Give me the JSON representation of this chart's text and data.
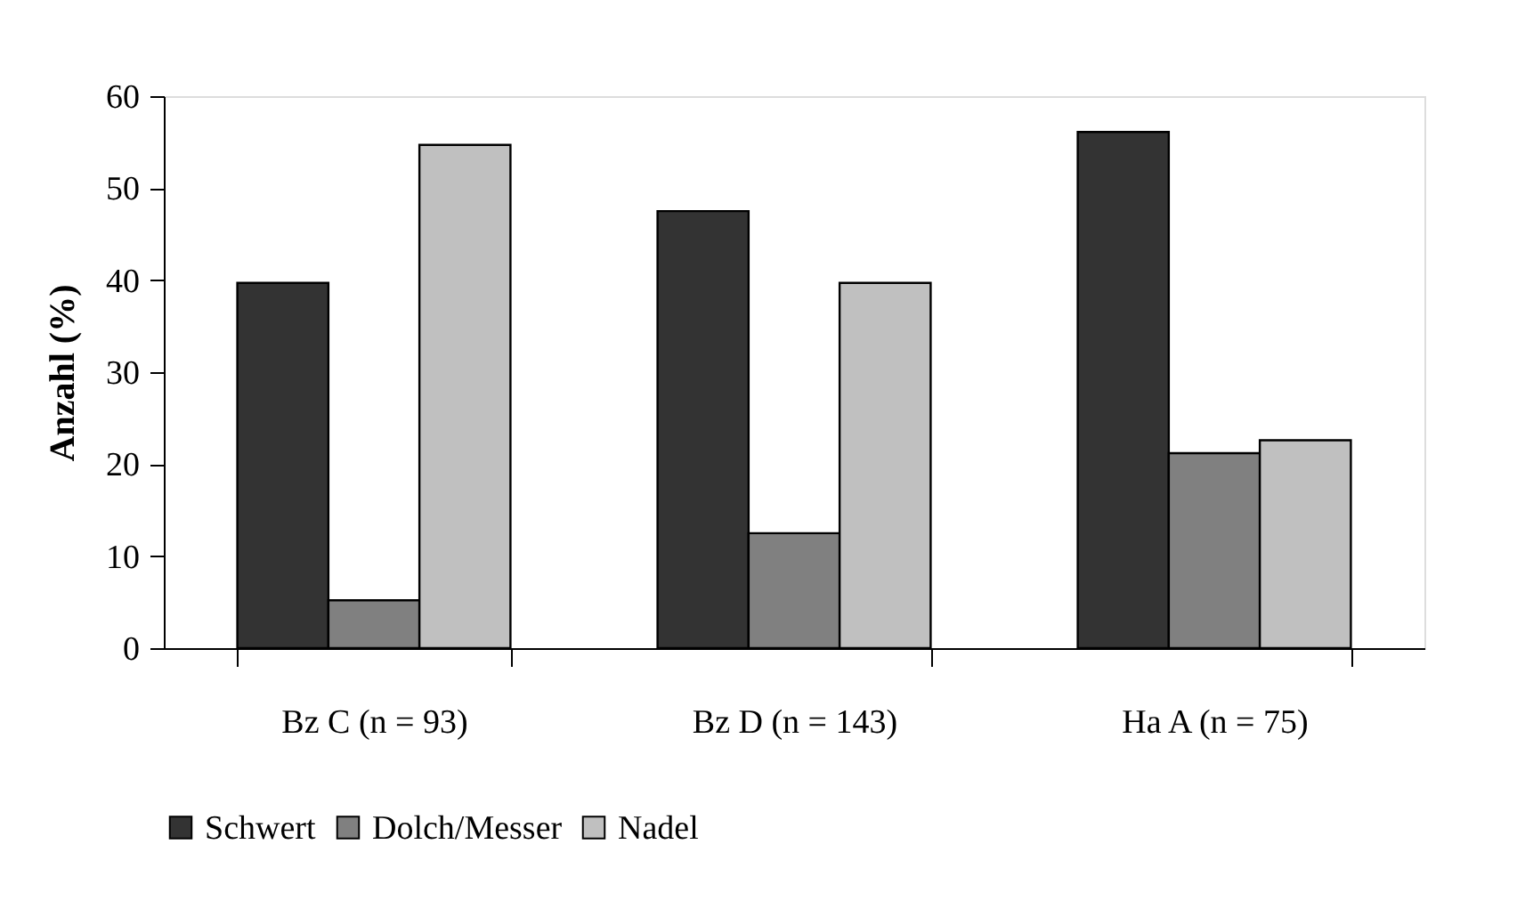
{
  "chart_data": {
    "type": "bar",
    "ylabel": "Anzahl (%)",
    "categories": [
      "Bz C (n = 93)",
      "Bz D (n = 143)",
      "Ha A (n = 75)"
    ],
    "series": [
      {
        "name": "Schwert",
        "color": "#333333",
        "values": [
          39.7,
          47.5,
          56.1
        ]
      },
      {
        "name": "Dolch/Messer",
        "color": "#808080",
        "values": [
          5.2,
          12.5,
          21.2
        ]
      },
      {
        "name": "Nadel",
        "color": "#c0c0c0",
        "values": [
          54.7,
          39.7,
          22.6
        ]
      }
    ],
    "ylim": [
      0,
      60
    ],
    "yticks": [
      0,
      10,
      20,
      30,
      40,
      50,
      60
    ],
    "grid": false,
    "legend": "bottom"
  }
}
